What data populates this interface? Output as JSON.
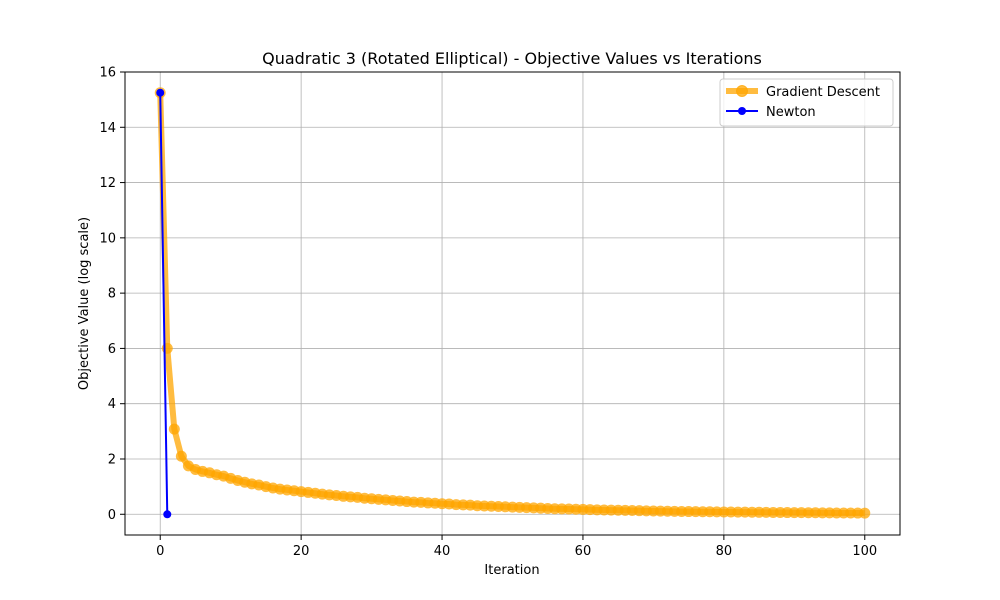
{
  "chart_data": {
    "type": "line",
    "title": "Quadratic 3 (Rotated Elliptical) - Objective Values vs Iterations",
    "xlabel": "Iteration",
    "ylabel": "Objective Value (log scale)",
    "xlim": [
      -5,
      105
    ],
    "ylim": [
      -0.75,
      16
    ],
    "xticks": [
      0,
      20,
      40,
      60,
      80,
      100
    ],
    "yticks": [
      0,
      2,
      4,
      6,
      8,
      10,
      12,
      14,
      16
    ],
    "grid": true,
    "legend_position": "top-right",
    "series": [
      {
        "name": "Gradient Descent",
        "color": "#ffa500",
        "values": [
          15.25,
          6.0,
          3.08,
          2.1,
          1.75,
          1.62,
          1.55,
          1.5,
          1.43,
          1.38,
          1.3,
          1.22,
          1.16,
          1.1,
          1.06,
          1.0,
          0.95,
          0.91,
          0.88,
          0.85,
          0.82,
          0.79,
          0.76,
          0.73,
          0.7,
          0.68,
          0.65,
          0.63,
          0.61,
          0.58,
          0.56,
          0.54,
          0.52,
          0.5,
          0.48,
          0.46,
          0.44,
          0.43,
          0.41,
          0.4,
          0.38,
          0.37,
          0.35,
          0.34,
          0.33,
          0.31,
          0.3,
          0.29,
          0.28,
          0.27,
          0.26,
          0.25,
          0.24,
          0.23,
          0.22,
          0.21,
          0.2,
          0.195,
          0.19,
          0.18,
          0.175,
          0.17,
          0.16,
          0.155,
          0.15,
          0.145,
          0.14,
          0.135,
          0.13,
          0.125,
          0.12,
          0.115,
          0.11,
          0.105,
          0.1,
          0.098,
          0.095,
          0.092,
          0.09,
          0.087,
          0.084,
          0.081,
          0.078,
          0.076,
          0.073,
          0.071,
          0.068,
          0.066,
          0.064,
          0.062,
          0.06,
          0.058,
          0.056,
          0.054,
          0.052,
          0.05,
          0.048,
          0.047,
          0.045,
          0.044,
          0.042
        ]
      },
      {
        "name": "Newton",
        "color": "#0000ff",
        "values": [
          15.25,
          0.0
        ]
      }
    ]
  }
}
